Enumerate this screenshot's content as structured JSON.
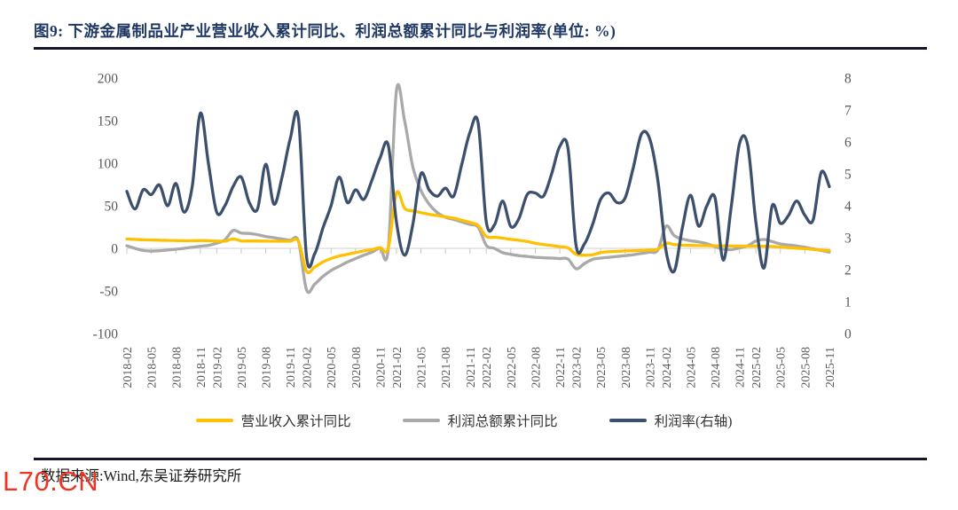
{
  "figure": {
    "title": "图9:  下游金属制品业产业营业收入累计同比、利润总额累计同比与利润率(单位: %)",
    "source": "数据来源:Wind,东吴证券研究所",
    "watermark": "L70.CN"
  },
  "colors": {
    "title_navy": "#1F3864",
    "revenue_yellow": "#FFC000",
    "profit_gray": "#A9A9A9",
    "margin_navy": "#3C4F6D",
    "axis_text": "#595959",
    "zero_line": "#D9D9D9",
    "watermark_red": "#EE3524"
  },
  "chart_data": {
    "type": "line",
    "title": "下游金属制品业产业营业收入累计同比、利润总额累计同比与利润率",
    "unit": "%",
    "grid": "zero-line-only",
    "legend_position": "bottom",
    "left_axis": {
      "ticks": [
        200,
        150,
        100,
        50,
        0,
        -50,
        -100
      ],
      "range": [
        -100,
        200
      ]
    },
    "right_axis": {
      "ticks": [
        8,
        7,
        6,
        5,
        4,
        3,
        2,
        1,
        0
      ],
      "range": [
        0,
        8
      ]
    },
    "x": [
      "2018-02",
      "2018-03",
      "2018-04",
      "2018-05",
      "2018-06",
      "2018-07",
      "2018-08",
      "2018-09",
      "2018-10",
      "2018-11",
      "2018-12",
      "2019-02",
      "2019-03",
      "2019-04",
      "2019-05",
      "2019-06",
      "2019-07",
      "2019-08",
      "2019-09",
      "2019-10",
      "2019-11",
      "2019-12",
      "2020-02",
      "2020-03",
      "2020-04",
      "2020-05",
      "2020-06",
      "2020-07",
      "2020-08",
      "2020-09",
      "2020-10",
      "2020-11",
      "2020-12",
      "2021-02",
      "2021-03",
      "2021-04",
      "2021-05",
      "2021-06",
      "2021-07",
      "2021-08",
      "2021-09",
      "2021-10",
      "2021-11",
      "2021-12",
      "2022-02",
      "2022-03",
      "2022-04",
      "2022-05",
      "2022-06",
      "2022-07",
      "2022-08",
      "2022-09",
      "2022-10",
      "2022-11",
      "2022-12",
      "2023-02",
      "2023-03",
      "2023-04",
      "2023-05",
      "2023-06",
      "2023-07",
      "2023-08",
      "2023-09",
      "2023-10",
      "2023-11",
      "2023-12",
      "2024-02",
      "2024-03",
      "2024-04",
      "2024-05",
      "2024-06",
      "2024-07",
      "2024-08",
      "2024-09",
      "2024-10",
      "2024-11",
      "2024-12",
      "2025-02",
      "2025-03",
      "2025-04",
      "2025-05",
      "2025-06",
      "2025-07",
      "2025-08",
      "2025-09",
      "2025-10",
      "2025-11"
    ],
    "x_tick_labels": [
      "2018-02",
      "2018-05",
      "2018-08",
      "2018-11",
      "2019-02",
      "2019-05",
      "2019-08",
      "2019-11",
      "2020-02",
      "2020-05",
      "2020-08",
      "2020-11",
      "2021-02",
      "2021-05",
      "2021-08",
      "2021-11",
      "2022-02",
      "2022-05",
      "2022-08",
      "2022-11",
      "2023-02",
      "2023-05",
      "2023-08",
      "2023-11",
      "2024-02",
      "2024-05",
      "2024-08",
      "2024-11",
      "2025-02",
      "2025-05",
      "2025-08",
      "2025-11"
    ],
    "x_tick_indices": [
      0,
      3,
      6,
      9,
      11,
      14,
      17,
      20,
      22,
      25,
      28,
      31,
      33,
      36,
      39,
      42,
      44,
      47,
      50,
      53,
      55,
      58,
      61,
      64,
      66,
      69,
      72,
      75,
      77,
      80,
      83,
      86
    ],
    "series": [
      {
        "name": "营业收入累计同比",
        "axis": "left",
        "color": "#FFC000",
        "values": [
          11,
          10.5,
          10,
          9.8,
          9.6,
          9.4,
          9.2,
          9,
          9.1,
          9.2,
          9,
          8.5,
          8.4,
          11,
          8.8,
          8.7,
          8.6,
          8.5,
          8.4,
          8.3,
          8.3,
          8.3,
          -27,
          -22,
          -16,
          -12,
          -9,
          -7,
          -5,
          -3,
          -1.5,
          0.8,
          0.3,
          65,
          47,
          44,
          42,
          40,
          38.5,
          37,
          35.5,
          33,
          30.5,
          27,
          14,
          13,
          12,
          10.5,
          9.5,
          8,
          6,
          4.5,
          3.2,
          2,
          0.5,
          -7,
          -8,
          -7.5,
          -5,
          -4,
          -3.5,
          -3,
          -2.8,
          -2.5,
          -2,
          -1,
          6,
          4.5,
          3.8,
          3.4,
          3.2,
          3.1,
          3,
          2.9,
          2.8,
          2.7,
          2.6,
          2.8,
          2.5,
          2.2,
          1.5,
          0.8,
          0.2,
          -0.5,
          -1.2,
          -2,
          -2.8
        ]
      },
      {
        "name": "利润总额累计同比",
        "axis": "left",
        "color": "#A9A9A9",
        "values": [
          3,
          0,
          -2.5,
          -3.2,
          -2.8,
          -2,
          -1,
          0,
          1.2,
          2.5,
          3.5,
          6,
          10,
          21,
          18,
          17.5,
          16,
          14,
          12.5,
          11,
          9.5,
          8.5,
          -49,
          -42,
          -33,
          -26,
          -21,
          -16,
          -12,
          -8,
          -4.5,
          0.5,
          -0.5,
          185,
          150,
          96,
          68,
          52,
          42,
          36.5,
          34,
          31,
          28,
          25,
          3.5,
          0,
          -5,
          -7,
          -8.5,
          -9.5,
          -10.5,
          -11,
          -11.5,
          -12,
          -12.5,
          -24,
          -18,
          -13,
          -11.5,
          -10.5,
          -9.5,
          -8.5,
          -7.5,
          -6,
          -4.5,
          -2,
          26,
          15,
          11,
          9,
          7.5,
          5.5,
          2,
          -1,
          -1.5,
          0.5,
          3,
          8.5,
          10.4,
          8,
          5.2,
          4,
          2.8,
          1.2,
          -0.5,
          -2.5,
          -4.5
        ]
      },
      {
        "name": "利润率(右轴)",
        "axis": "right",
        "color": "#3C4F6D",
        "values": [
          4.45,
          3.9,
          4.5,
          4.35,
          4.65,
          4,
          4.7,
          3.8,
          4.6,
          6.9,
          5.3,
          3.8,
          4,
          4.6,
          4.9,
          4.1,
          3.9,
          5.3,
          4.05,
          4.9,
          6.1,
          6.75,
          2.4,
          2.5,
          3.3,
          4,
          4.9,
          4.1,
          4.5,
          4.2,
          4.8,
          5.5,
          5.9,
          3.5,
          2.45,
          3.4,
          5,
          4.5,
          4.3,
          4.55,
          4.3,
          5.3,
          6.3,
          6.6,
          3.5,
          3.4,
          4.15,
          3.35,
          3.6,
          4.35,
          4.4,
          4.3,
          5,
          5.86,
          5.8,
          2.75,
          2.8,
          3.4,
          4.2,
          4.4,
          4.1,
          4.25,
          5.2,
          6.25,
          6.1,
          4.8,
          2.6,
          1.95,
          3.3,
          4.33,
          3.36,
          4,
          4.25,
          2.3,
          4,
          5.95,
          5.9,
          3.5,
          2.05,
          4,
          3.45,
          3.7,
          4.15,
          3.7,
          3.55,
          5.05,
          4.6
        ]
      }
    ]
  }
}
